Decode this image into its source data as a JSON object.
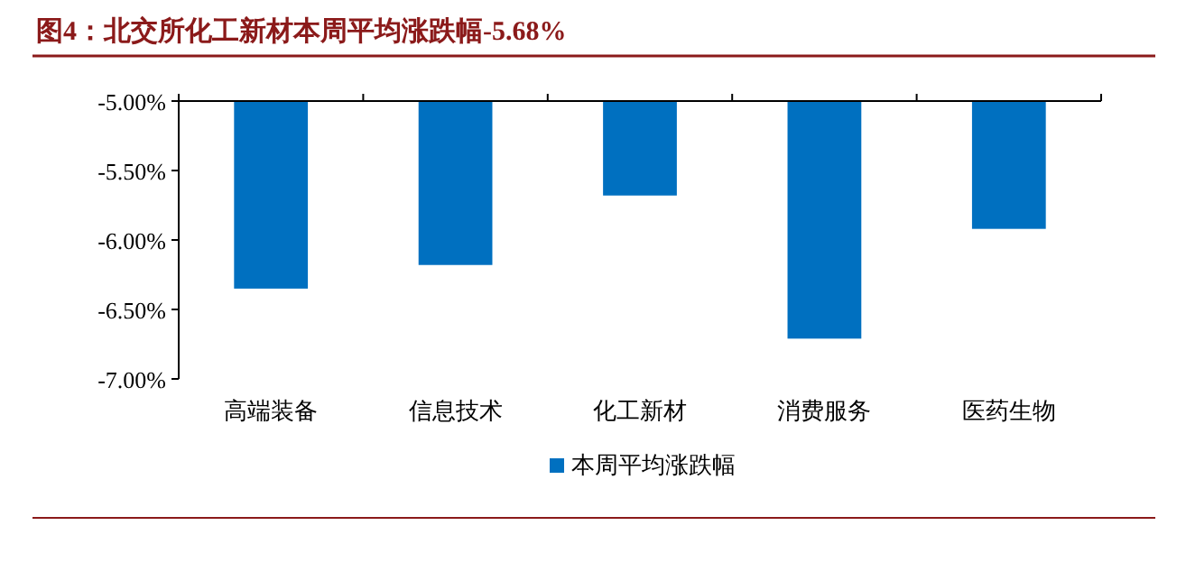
{
  "chart_data": {
    "type": "bar",
    "title": "图4：北交所化工新材本周平均涨跌幅-5.68%",
    "categories": [
      "高端装备",
      "信息技术",
      "化工新材",
      "消费服务",
      "医药生物"
    ],
    "series": [
      {
        "name": "本周平均涨跌幅",
        "color": "#0070c0",
        "values": [
          -6.35,
          -6.18,
          -5.68,
          -6.71,
          -5.92
        ]
      }
    ],
    "ylim": [
      -7,
      -5
    ],
    "yticks": [
      {
        "value": -7,
        "label": "-7.00%"
      },
      {
        "value": -6.5,
        "label": "-6.50%"
      },
      {
        "value": -6,
        "label": "-6.00%"
      },
      {
        "value": -5.5,
        "label": "-5.50%"
      },
      {
        "value": -5,
        "label": "-5.00%"
      }
    ],
    "grid": false,
    "legend": "bottom"
  }
}
